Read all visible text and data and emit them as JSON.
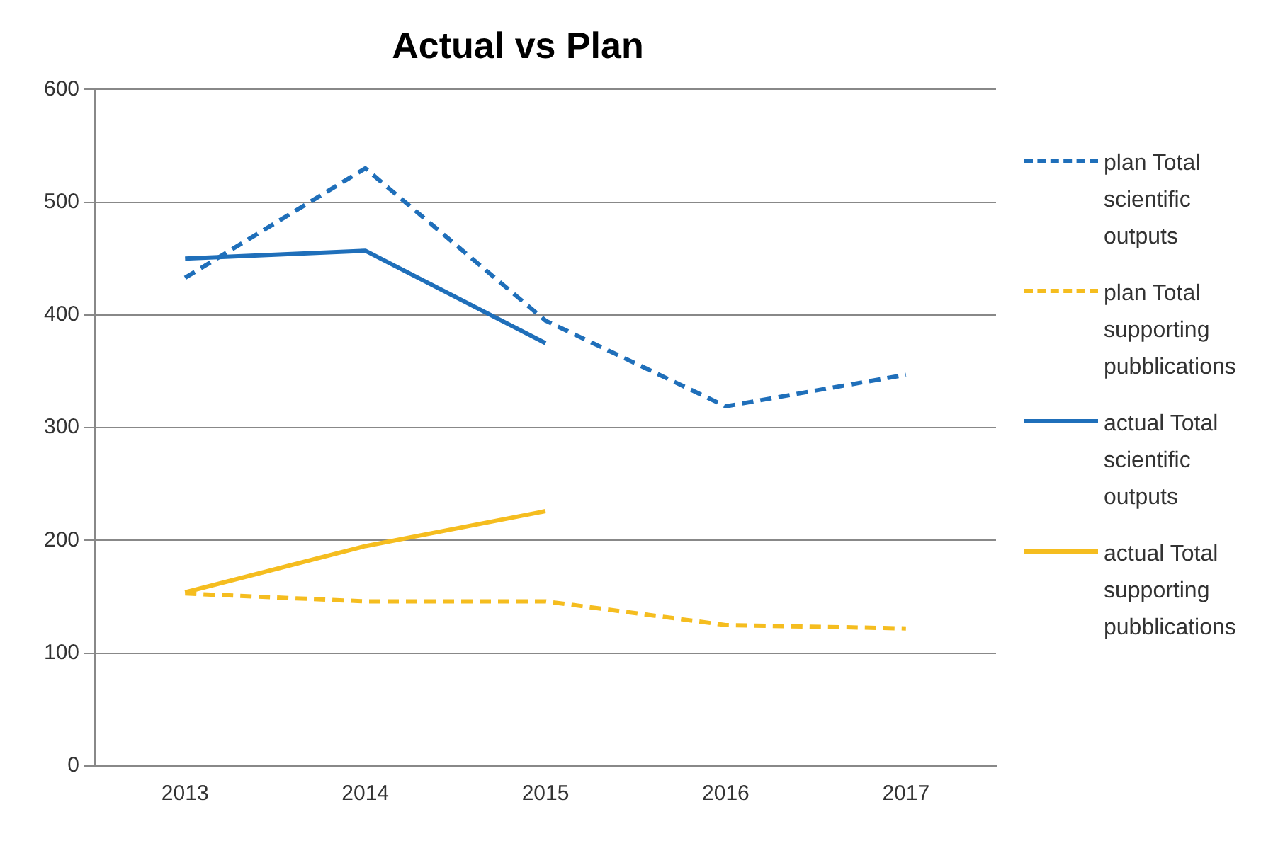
{
  "chart_data": {
    "type": "line",
    "title": "Actual vs Plan",
    "categories": [
      "2013",
      "2014",
      "2015",
      "2016",
      "2017"
    ],
    "series": [
      {
        "name": "plan Total scientific outputs",
        "color": "#1f6fba",
        "line_style": "dashed",
        "values": [
          433,
          530,
          395,
          319,
          347
        ]
      },
      {
        "name": "plan Total supporting pubblications",
        "color": "#f5bd1f",
        "line_style": "dashed",
        "values": [
          153,
          146,
          146,
          125,
          122
        ]
      },
      {
        "name": "actual  Total scientific outputs",
        "color": "#1f6fba",
        "line_style": "solid",
        "values": [
          450,
          457,
          375,
          null,
          null
        ]
      },
      {
        "name": "actual  Total supporting pubblications",
        "color": "#f5bd1f",
        "line_style": "solid",
        "values": [
          154,
          195,
          226,
          null,
          null
        ]
      }
    ],
    "ylim": [
      0,
      600
    ],
    "yticks": [
      0,
      100,
      200,
      300,
      400,
      500,
      600
    ],
    "grid": "y",
    "legend": "right",
    "marker": "none"
  }
}
